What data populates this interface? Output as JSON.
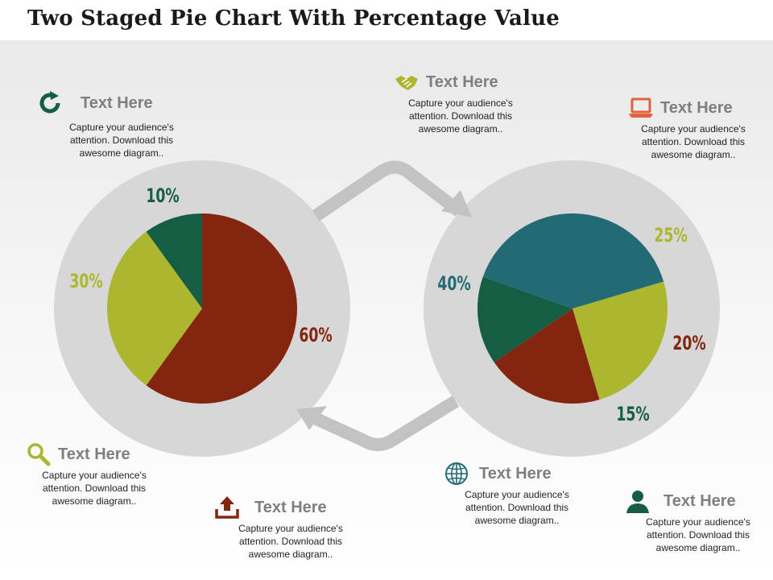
{
  "title": "Two Staged Pie Chart With Percentage Value",
  "chart_data": [
    {
      "type": "pie",
      "title": "",
      "slices": [
        {
          "label": "60%",
          "value": 60,
          "color": "#84260f"
        },
        {
          "label": "30%",
          "value": 30,
          "color": "#adb62f"
        },
        {
          "label": "10%",
          "value": 10,
          "color": "#155d43"
        }
      ]
    },
    {
      "type": "pie",
      "title": "",
      "slices": [
        {
          "label": "25%",
          "value": 25,
          "color": "#adb62f"
        },
        {
          "label": "20%",
          "value": 20,
          "color": "#84260f"
        },
        {
          "label": "15%",
          "value": 15,
          "color": "#155d43"
        },
        {
          "label": "40%",
          "value": 40,
          "color": "#226b74"
        }
      ]
    }
  ],
  "callouts": [
    {
      "title": "Text Here",
      "body": "Capture your audience's attention. Download this awesome diagram..",
      "icon": "refresh-icon",
      "color": "#155d43"
    },
    {
      "title": "Text Here",
      "body": "Capture your audience's attention. Download this awesome diagram..",
      "icon": "handshake-icon",
      "color": "#adb62f"
    },
    {
      "title": "Text Here",
      "body": "Capture your audience's attention. Download this awesome diagram..",
      "icon": "laptop-icon",
      "color": "#e2603a"
    },
    {
      "title": "Text Here",
      "body": "Capture your audience's attention. Download this awesome diagram..",
      "icon": "search-icon",
      "color": "#adb62f"
    },
    {
      "title": "Text Here",
      "body": "Capture your audience's attention. Download this awesome diagram..",
      "icon": "upload-icon",
      "color": "#84260f"
    },
    {
      "title": "Text Here",
      "body": "Capture your audience's attention. Download this awesome diagram..",
      "icon": "globe-icon",
      "color": "#226b74"
    },
    {
      "title": "Text Here",
      "body": "Capture your audience's attention. Download this awesome diagram..",
      "icon": "user-icon",
      "color": "#155d43"
    }
  ]
}
